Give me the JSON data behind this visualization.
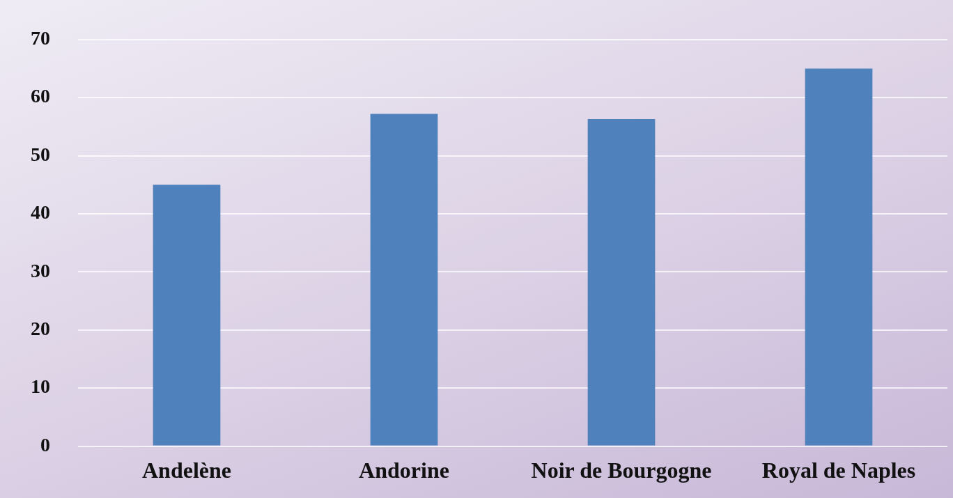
{
  "chart_data": {
    "type": "bar",
    "categories": [
      "Andelène",
      "Andorine",
      "Noir de Bourgogne",
      "Royal de Naples"
    ],
    "values": [
      45,
      57.2,
      56.3,
      65
    ],
    "color": "#4f81bd",
    "ylim": [
      0,
      70
    ],
    "yticks": [
      0,
      10,
      20,
      30,
      40,
      50,
      60,
      70
    ],
    "grid": "y",
    "legend": false
  }
}
